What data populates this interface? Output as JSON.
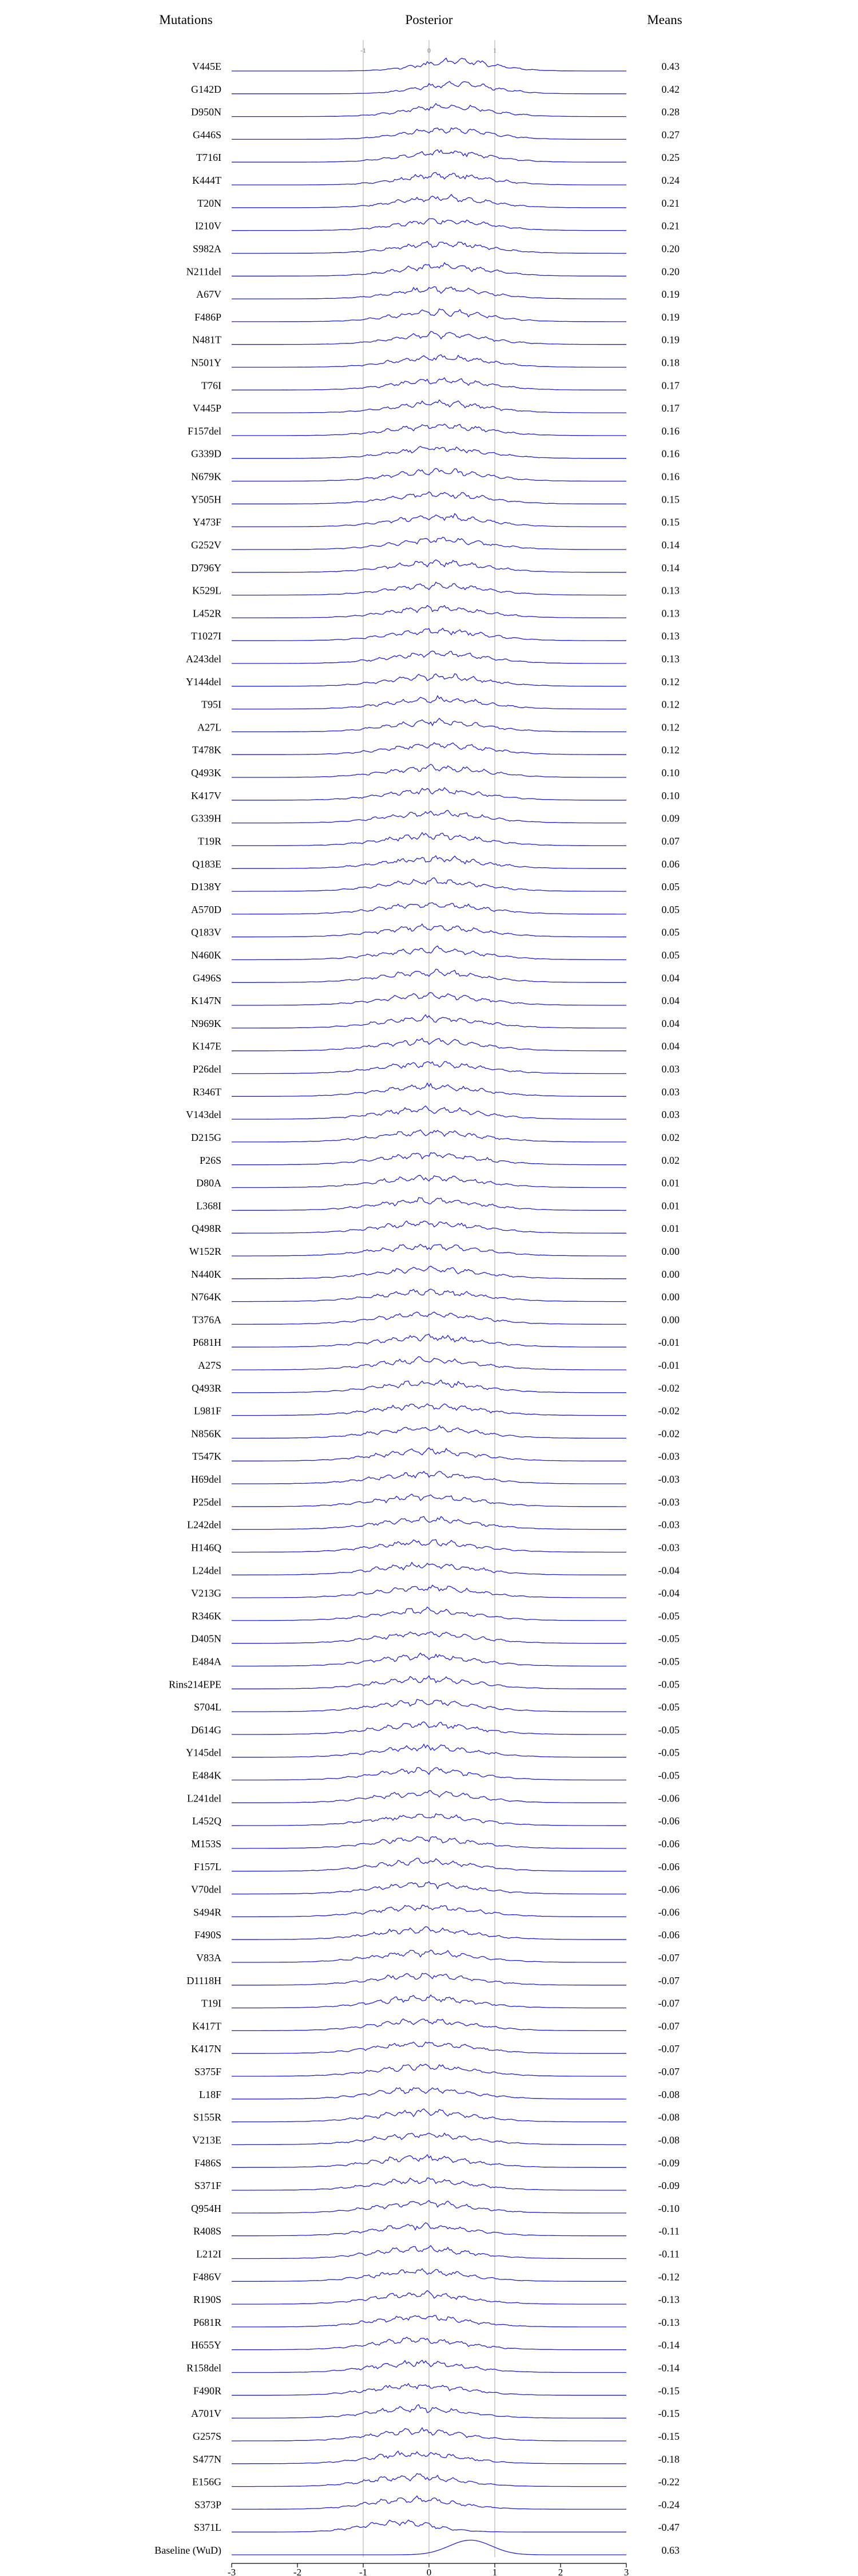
{
  "headers": {
    "left": "Mutations",
    "center": "Posterior",
    "right": "Means"
  },
  "colors": {
    "density_line": "#1f1fd6",
    "axis": "#000000",
    "reference_line": "#b8b8b8"
  },
  "chart_data": {
    "type": "ridgeline",
    "xlim": [
      -3,
      3
    ],
    "x_ticks": [
      -3,
      -2,
      -1,
      0,
      1,
      2,
      3
    ],
    "reference_lines": [
      -1,
      0,
      1
    ],
    "reference_line_labels": [
      "-1",
      "0",
      "1"
    ],
    "grid": false,
    "series": [
      {
        "name": "V445E",
        "mean": 0.43
      },
      {
        "name": "G142D",
        "mean": 0.42
      },
      {
        "name": "D950N",
        "mean": 0.28
      },
      {
        "name": "G446S",
        "mean": 0.27
      },
      {
        "name": "T716I",
        "mean": 0.25
      },
      {
        "name": "K444T",
        "mean": 0.24
      },
      {
        "name": "T20N",
        "mean": 0.21
      },
      {
        "name": "I210V",
        "mean": 0.21
      },
      {
        "name": "S982A",
        "mean": 0.2
      },
      {
        "name": "N211del",
        "mean": 0.2
      },
      {
        "name": "A67V",
        "mean": 0.19
      },
      {
        "name": "F486P",
        "mean": 0.19
      },
      {
        "name": "N481T",
        "mean": 0.19
      },
      {
        "name": "N501Y",
        "mean": 0.18
      },
      {
        "name": "T76I",
        "mean": 0.17
      },
      {
        "name": "V445P",
        "mean": 0.17
      },
      {
        "name": "F157del",
        "mean": 0.16
      },
      {
        "name": "G339D",
        "mean": 0.16
      },
      {
        "name": "N679K",
        "mean": 0.16
      },
      {
        "name": "Y505H",
        "mean": 0.15
      },
      {
        "name": "Y473F",
        "mean": 0.15
      },
      {
        "name": "G252V",
        "mean": 0.14
      },
      {
        "name": "D796Y",
        "mean": 0.14
      },
      {
        "name": "K529L",
        "mean": 0.13
      },
      {
        "name": "L452R",
        "mean": 0.13
      },
      {
        "name": "T1027I",
        "mean": 0.13
      },
      {
        "name": "A243del",
        "mean": 0.13
      },
      {
        "name": "Y144del",
        "mean": 0.12
      },
      {
        "name": "T95I",
        "mean": 0.12
      },
      {
        "name": "A27L",
        "mean": 0.12
      },
      {
        "name": "T478K",
        "mean": 0.12
      },
      {
        "name": "Q493K",
        "mean": 0.1
      },
      {
        "name": "K417V",
        "mean": 0.1
      },
      {
        "name": "G339H",
        "mean": 0.09
      },
      {
        "name": "T19R",
        "mean": 0.07
      },
      {
        "name": "Q183E",
        "mean": 0.06
      },
      {
        "name": "D138Y",
        "mean": 0.05
      },
      {
        "name": "A570D",
        "mean": 0.05
      },
      {
        "name": "Q183V",
        "mean": 0.05
      },
      {
        "name": "N460K",
        "mean": 0.05
      },
      {
        "name": "G496S",
        "mean": 0.04
      },
      {
        "name": "K147N",
        "mean": 0.04
      },
      {
        "name": "N969K",
        "mean": 0.04
      },
      {
        "name": "K147E",
        "mean": 0.04
      },
      {
        "name": "P26del",
        "mean": 0.03
      },
      {
        "name": "R346T",
        "mean": 0.03
      },
      {
        "name": "V143del",
        "mean": 0.03
      },
      {
        "name": "D215G",
        "mean": 0.02
      },
      {
        "name": "P26S",
        "mean": 0.02
      },
      {
        "name": "D80A",
        "mean": 0.01
      },
      {
        "name": "L368I",
        "mean": 0.01
      },
      {
        "name": "Q498R",
        "mean": 0.01
      },
      {
        "name": "W152R",
        "mean": 0.0
      },
      {
        "name": "N440K",
        "mean": 0.0
      },
      {
        "name": "N764K",
        "mean": -0.0
      },
      {
        "name": "T376A",
        "mean": -0.0
      },
      {
        "name": "P681H",
        "mean": -0.01
      },
      {
        "name": "A27S",
        "mean": -0.01
      },
      {
        "name": "Q493R",
        "mean": -0.02
      },
      {
        "name": "L981F",
        "mean": -0.02
      },
      {
        "name": "N856K",
        "mean": -0.02
      },
      {
        "name": "T547K",
        "mean": -0.03
      },
      {
        "name": "H69del",
        "mean": -0.03
      },
      {
        "name": "P25del",
        "mean": -0.03
      },
      {
        "name": "L242del",
        "mean": -0.03
      },
      {
        "name": "H146Q",
        "mean": -0.03
      },
      {
        "name": "L24del",
        "mean": -0.04
      },
      {
        "name": "V213G",
        "mean": -0.04
      },
      {
        "name": "R346K",
        "mean": -0.05
      },
      {
        "name": "D405N",
        "mean": -0.05
      },
      {
        "name": "E484A",
        "mean": -0.05
      },
      {
        "name": "Rins214EPE",
        "mean": -0.05
      },
      {
        "name": "S704L",
        "mean": -0.05
      },
      {
        "name": "D614G",
        "mean": -0.05
      },
      {
        "name": "Y145del",
        "mean": -0.05
      },
      {
        "name": "E484K",
        "mean": -0.05
      },
      {
        "name": "L241del",
        "mean": -0.06
      },
      {
        "name": "L452Q",
        "mean": -0.06
      },
      {
        "name": "M153S",
        "mean": -0.06
      },
      {
        "name": "F157L",
        "mean": -0.06
      },
      {
        "name": "V70del",
        "mean": -0.06
      },
      {
        "name": "S494R",
        "mean": -0.06
      },
      {
        "name": "F490S",
        "mean": -0.06
      },
      {
        "name": "V83A",
        "mean": -0.07
      },
      {
        "name": "D1118H",
        "mean": -0.07
      },
      {
        "name": "T19I",
        "mean": -0.07
      },
      {
        "name": "K417T",
        "mean": -0.07
      },
      {
        "name": "K417N",
        "mean": -0.07
      },
      {
        "name": "S375F",
        "mean": -0.07
      },
      {
        "name": "L18F",
        "mean": -0.08
      },
      {
        "name": "S155R",
        "mean": -0.08
      },
      {
        "name": "V213E",
        "mean": -0.08
      },
      {
        "name": "F486S",
        "mean": -0.09
      },
      {
        "name": "S371F",
        "mean": -0.09
      },
      {
        "name": "Q954H",
        "mean": -0.1
      },
      {
        "name": "R408S",
        "mean": -0.11
      },
      {
        "name": "L212I",
        "mean": -0.11
      },
      {
        "name": "F486V",
        "mean": -0.12
      },
      {
        "name": "R190S",
        "mean": -0.13
      },
      {
        "name": "P681R",
        "mean": -0.13
      },
      {
        "name": "H655Y",
        "mean": -0.14
      },
      {
        "name": "R158del",
        "mean": -0.14
      },
      {
        "name": "F490R",
        "mean": -0.15
      },
      {
        "name": "A701V",
        "mean": -0.15
      },
      {
        "name": "G257S",
        "mean": -0.15
      },
      {
        "name": "S477N",
        "mean": -0.18
      },
      {
        "name": "E156G",
        "mean": -0.22
      },
      {
        "name": "S373P",
        "mean": -0.24
      },
      {
        "name": "S371L",
        "mean": -0.47
      },
      {
        "name": "Baseline (WuD)",
        "mean": 0.63
      }
    ]
  }
}
